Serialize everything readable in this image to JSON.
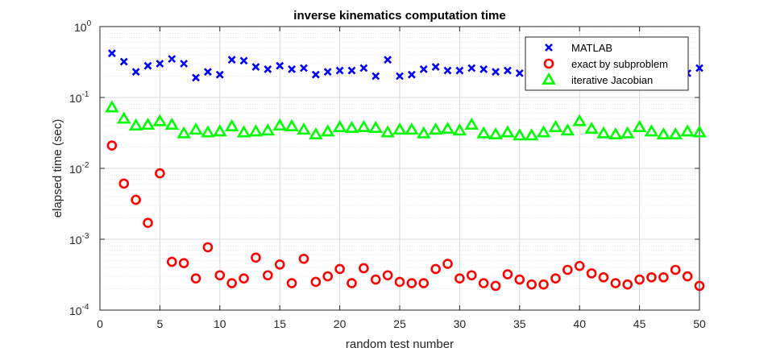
{
  "chart_data": {
    "type": "scatter",
    "title": "inverse kinematics computation time",
    "xlabel": "random test number",
    "ylabel": "elapsed time (sec)",
    "xlim": [
      0,
      50
    ],
    "ylim": [
      0.0001,
      1
    ],
    "yscale": "log",
    "grid": true,
    "minor_grid": true,
    "legend_position": "top-right",
    "x_ticks": [
      0,
      5,
      10,
      15,
      20,
      25,
      30,
      35,
      40,
      45,
      50
    ],
    "y_tick_labels": [
      {
        "base": "10",
        "exp": "0"
      },
      {
        "base": "10",
        "exp": "-1"
      },
      {
        "base": "10",
        "exp": "-2"
      },
      {
        "base": "10",
        "exp": "-3"
      },
      {
        "base": "10",
        "exp": "-4"
      }
    ],
    "series": [
      {
        "name": "MATLAB",
        "marker": "x",
        "color": "#0000ff",
        "values": [
          0.42,
          0.32,
          0.23,
          0.28,
          0.3,
          0.35,
          0.3,
          0.19,
          0.23,
          0.21,
          0.34,
          0.33,
          0.27,
          0.25,
          0.28,
          0.25,
          0.26,
          0.21,
          0.23,
          0.24,
          0.24,
          0.26,
          0.2,
          0.34,
          0.2,
          0.21,
          0.25,
          0.27,
          0.24,
          0.24,
          0.26,
          0.25,
          0.23,
          0.24,
          0.22,
          0.24,
          0.25,
          0.21,
          0.22,
          0.24,
          0.24,
          0.26,
          0.25,
          0.23,
          0.24,
          0.23,
          0.22,
          0.24,
          0.22,
          0.26
        ]
      },
      {
        "name": "exact by subproblem",
        "marker": "o",
        "color": "#ff0000",
        "values": [
          0.021,
          0.0061,
          0.0036,
          0.0017,
          0.0085,
          0.00048,
          0.00046,
          0.00028,
          0.00077,
          0.00031,
          0.00024,
          0.00028,
          0.00055,
          0.00031,
          0.00044,
          0.00024,
          0.00053,
          0.00025,
          0.0003,
          0.00038,
          0.00024,
          0.00039,
          0.00027,
          0.00031,
          0.00025,
          0.00024,
          0.00024,
          0.00038,
          0.00045,
          0.00028,
          0.00031,
          0.00024,
          0.00022,
          0.00032,
          0.00027,
          0.00023,
          0.00023,
          0.00028,
          0.00037,
          0.00042,
          0.00033,
          0.00029,
          0.00024,
          0.00023,
          0.00027,
          0.00029,
          0.00029,
          0.00037,
          0.0003,
          0.00022
        ]
      },
      {
        "name": "iterative Jacobian",
        "marker": "^",
        "color": "#00ff00",
        "values": [
          0.072,
          0.05,
          0.04,
          0.041,
          0.046,
          0.041,
          0.031,
          0.035,
          0.032,
          0.033,
          0.039,
          0.032,
          0.033,
          0.034,
          0.04,
          0.039,
          0.035,
          0.03,
          0.033,
          0.038,
          0.037,
          0.038,
          0.037,
          0.032,
          0.035,
          0.035,
          0.031,
          0.035,
          0.036,
          0.034,
          0.041,
          0.031,
          0.03,
          0.032,
          0.029,
          0.029,
          0.032,
          0.038,
          0.034,
          0.046,
          0.036,
          0.031,
          0.03,
          0.031,
          0.038,
          0.033,
          0.03,
          0.03,
          0.033,
          0.032
        ]
      }
    ]
  }
}
